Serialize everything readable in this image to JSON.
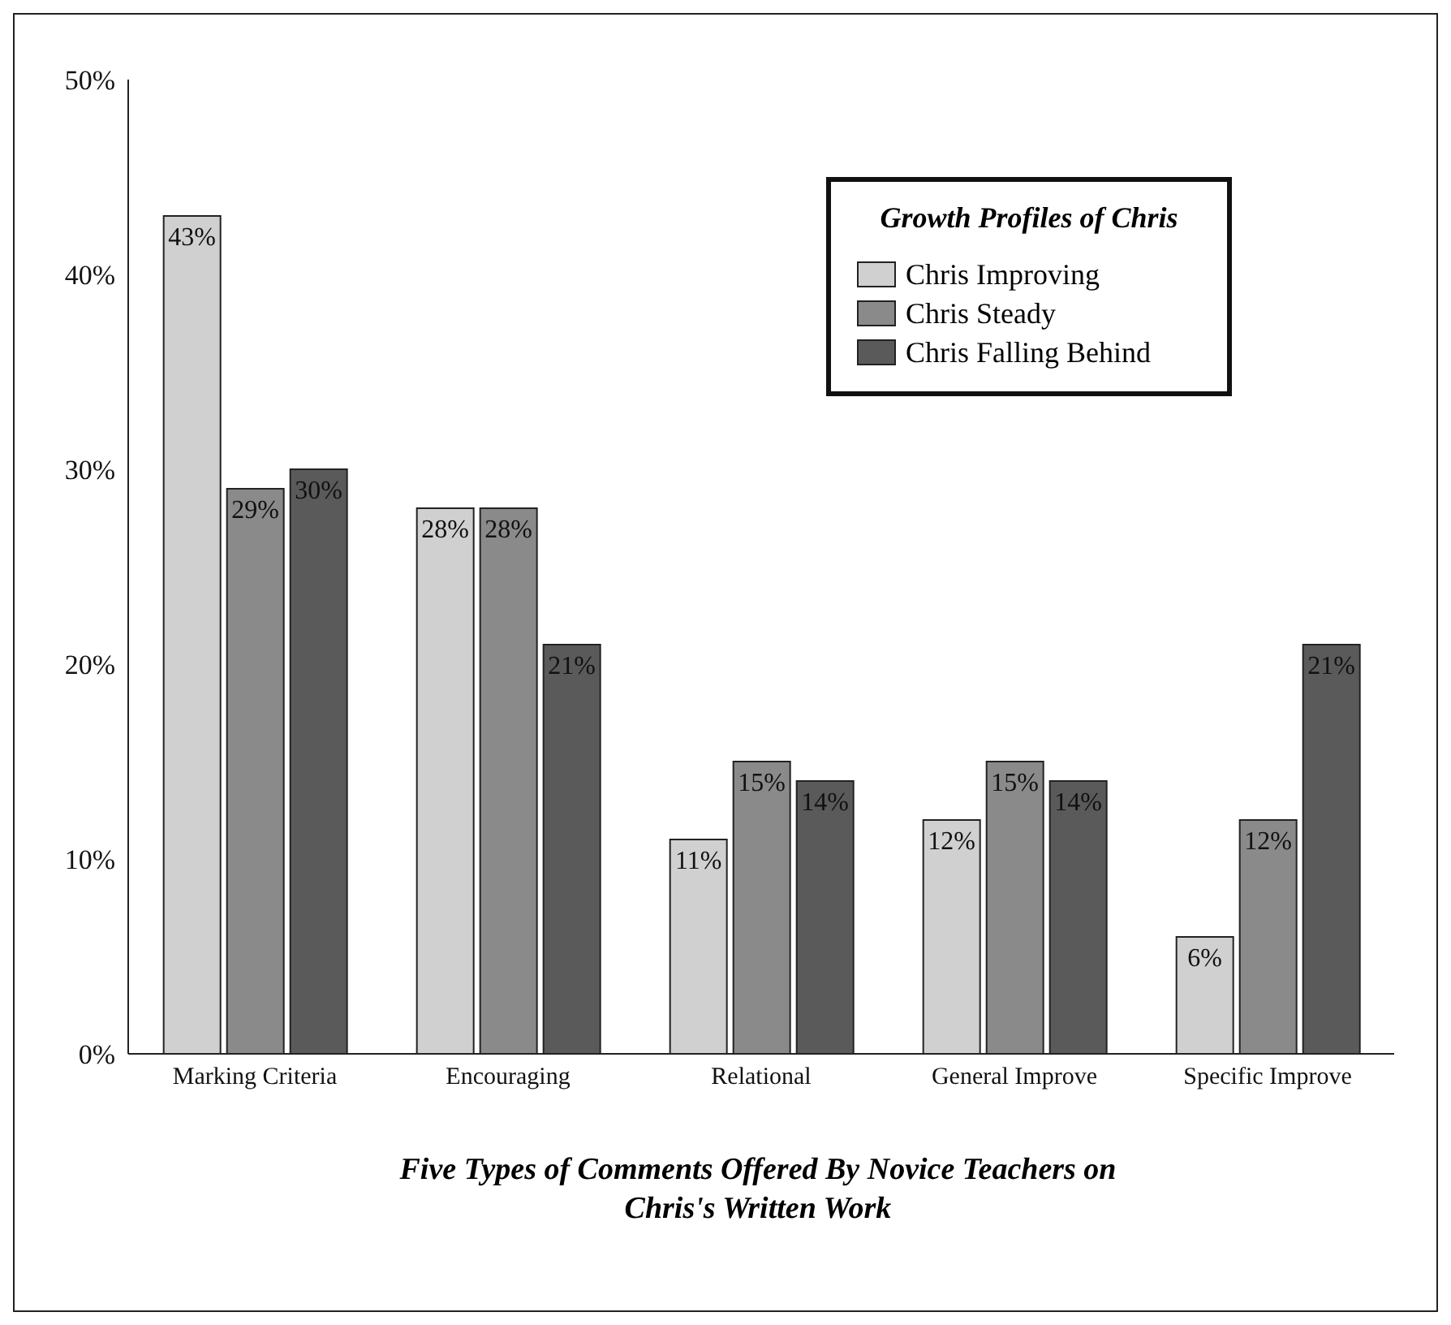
{
  "chart_data": {
    "type": "bar",
    "title": "Five Types of Comments Offered By Novice Teachers on Chris's Written Work",
    "legend_title": "Growth Profiles of Chris",
    "categories": [
      "Marking Criteria",
      "Encouraging",
      "Relational",
      "General Improve",
      "Specific Improve"
    ],
    "series": [
      {
        "name": "Chris Improving",
        "color": "#d0d0d0",
        "values": [
          43,
          28,
          11,
          12,
          6
        ],
        "value_labels": [
          "43%",
          "28%",
          "11%",
          "12%",
          "6%"
        ]
      },
      {
        "name": "Chris Steady",
        "color": "#8a8a8a",
        "values": [
          29,
          28,
          15,
          15,
          12
        ],
        "value_labels": [
          "29%",
          "28%",
          "15%",
          "15%",
          "12%"
        ]
      },
      {
        "name": "Chris Falling Behind",
        "color": "#5a5a5a",
        "values": [
          30,
          21,
          14,
          14,
          21
        ],
        "value_labels": [
          "30%",
          "21%",
          "14%",
          "14%",
          "21%"
        ]
      }
    ],
    "ylim": [
      0,
      50
    ],
    "yticks": [
      {
        "value": 0,
        "label": "0%"
      },
      {
        "value": 10,
        "label": "10%"
      },
      {
        "value": 20,
        "label": "20%"
      },
      {
        "value": 30,
        "label": "30%"
      },
      {
        "value": 40,
        "label": "40%"
      },
      {
        "value": 50,
        "label": "50%"
      }
    ],
    "grid": false,
    "legend": "top right"
  }
}
